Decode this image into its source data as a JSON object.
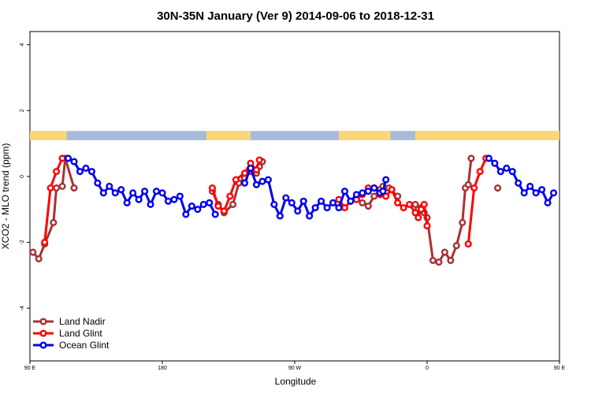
{
  "chart_data": {
    "type": "line",
    "title": "30N-35N January (Ver 9)   2014-09-06 to 2018-12-31",
    "xlabel": "Longitude",
    "ylabel": "XCO2 - MLO trend (ppm)",
    "xlim": [
      0,
      360
    ],
    "ylim": [
      -5.6,
      4.4
    ],
    "x_unit_note": "degrees east of 90 E",
    "x_ticks": [
      {
        "x": 0,
        "label": "90 E"
      },
      {
        "x": 90,
        "label": "180"
      },
      {
        "x": 180,
        "label": "90 W"
      },
      {
        "x": 270,
        "label": "0"
      },
      {
        "x": 360,
        "label": "90 E"
      },
      {
        "x": 450,
        "label": "180"
      }
    ],
    "y_ticks": [
      {
        "y": -4,
        "label": "-4"
      },
      {
        "y": -2,
        "label": "-2"
      },
      {
        "y": 0,
        "label": "0"
      },
      {
        "y": 2,
        "label": "2"
      },
      {
        "y": 4,
        "label": "4"
      }
    ],
    "land_band": {
      "y_range": [
        1.1,
        1.38
      ],
      "ocean_color": "#a6bbd8",
      "land_color": "#fbd77a",
      "land_segments": [
        [
          0,
          25
        ],
        [
          120,
          150
        ],
        [
          210,
          245
        ],
        [
          262,
          360
        ]
      ]
    },
    "legend": {
      "placement": "bottom-left",
      "entries": [
        {
          "label": "Land Nadir",
          "color": "#a83232"
        },
        {
          "label": "Land Glint",
          "color": "#ff0000"
        },
        {
          "label": "Ocean Glint",
          "color": "#0000ee"
        }
      ]
    },
    "series": [
      {
        "name": "Land Nadir",
        "color": "#a83232",
        "points": [
          [
            2,
            -2.3
          ],
          [
            6,
            -2.5
          ],
          [
            10,
            -2.05
          ],
          [
            16,
            -1.4
          ],
          [
            18,
            -0.35
          ],
          [
            22,
            -0.3
          ],
          [
            24,
            0.55
          ],
          [
            30,
            -0.35
          ],
          [
            124,
            -0.45
          ],
          [
            128,
            -0.85
          ],
          [
            132,
            -1.1
          ],
          [
            138,
            -0.85
          ],
          [
            142,
            -0.2
          ],
          [
            146,
            -0.05
          ],
          [
            150,
            0.15
          ],
          [
            154,
            0.1
          ],
          [
            156,
            0.3
          ],
          [
            158,
            0.45
          ],
          [
            226,
            -0.8
          ],
          [
            230,
            -0.9
          ],
          [
            234,
            -0.6
          ],
          [
            238,
            -0.4
          ],
          [
            240,
            -0.3
          ],
          [
            244,
            -0.35
          ],
          [
            250,
            -0.6
          ],
          [
            262,
            -0.85
          ],
          [
            264,
            -1.0
          ],
          [
            266,
            -0.95
          ],
          [
            268,
            -1.1
          ],
          [
            270,
            -1.25
          ],
          [
            274,
            -2.55
          ],
          [
            278,
            -2.6
          ],
          [
            282,
            -2.3
          ],
          [
            286,
            -2.55
          ],
          [
            290,
            -2.1
          ],
          [
            294,
            -1.4
          ],
          [
            296,
            -0.35
          ],
          [
            298,
            -0.25
          ],
          [
            300,
            0.55
          ],
          [
            318,
            -0.35
          ]
        ]
      },
      {
        "name": "Land Glint",
        "color": "#ff0000",
        "points": [
          [
            10,
            -2.0
          ],
          [
            14,
            -0.35
          ],
          [
            18,
            0.15
          ],
          [
            22,
            0.55
          ],
          [
            124,
            -0.35
          ],
          [
            128,
            -0.9
          ],
          [
            132,
            -1.05
          ],
          [
            136,
            -0.6
          ],
          [
            140,
            -0.1
          ],
          [
            146,
            0.1
          ],
          [
            150,
            0.4
          ],
          [
            154,
            0.2
          ],
          [
            156,
            0.5
          ],
          [
            210,
            -0.7
          ],
          [
            214,
            -0.95
          ],
          [
            218,
            -0.75
          ],
          [
            222,
            -0.7
          ],
          [
            226,
            -0.55
          ],
          [
            230,
            -0.35
          ],
          [
            234,
            -0.35
          ],
          [
            238,
            -0.55
          ],
          [
            242,
            -0.6
          ],
          [
            246,
            -0.4
          ],
          [
            250,
            -0.8
          ],
          [
            254,
            -0.95
          ],
          [
            258,
            -0.85
          ],
          [
            262,
            -1.1
          ],
          [
            264,
            -1.25
          ],
          [
            266,
            -1.0
          ],
          [
            268,
            -0.85
          ],
          [
            270,
            -1.5
          ],
          [
            298,
            -2.05
          ],
          [
            302,
            -0.35
          ],
          [
            306,
            0.15
          ],
          [
            310,
            0.55
          ]
        ]
      },
      {
        "name": "Ocean Glint",
        "color": "#0000ee",
        "points": [
          [
            26,
            0.55
          ],
          [
            30,
            0.45
          ],
          [
            34,
            0.15
          ],
          [
            38,
            0.25
          ],
          [
            42,
            0.15
          ],
          [
            46,
            -0.2
          ],
          [
            50,
            -0.5
          ],
          [
            54,
            -0.3
          ],
          [
            58,
            -0.5
          ],
          [
            62,
            -0.4
          ],
          [
            66,
            -0.8
          ],
          [
            70,
            -0.5
          ],
          [
            74,
            -0.7
          ],
          [
            78,
            -0.45
          ],
          [
            82,
            -0.85
          ],
          [
            86,
            -0.45
          ],
          [
            90,
            -0.5
          ],
          [
            94,
            -0.75
          ],
          [
            98,
            -0.7
          ],
          [
            102,
            -0.6
          ],
          [
            106,
            -1.15
          ],
          [
            110,
            -0.9
          ],
          [
            114,
            -1.0
          ],
          [
            118,
            -0.85
          ],
          [
            122,
            -0.8
          ],
          [
            126,
            -1.15
          ],
          [
            146,
            -0.2
          ],
          [
            150,
            0.25
          ],
          [
            154,
            -0.25
          ],
          [
            158,
            -0.15
          ],
          [
            162,
            -0.1
          ],
          [
            166,
            -0.85
          ],
          [
            170,
            -1.2
          ],
          [
            174,
            -0.65
          ],
          [
            178,
            -0.8
          ],
          [
            182,
            -1.05
          ],
          [
            186,
            -0.75
          ],
          [
            190,
            -1.2
          ],
          [
            194,
            -0.95
          ],
          [
            198,
            -0.75
          ],
          [
            202,
            -0.95
          ],
          [
            206,
            -0.8
          ],
          [
            210,
            -0.95
          ],
          [
            214,
            -0.45
          ],
          [
            218,
            -0.75
          ],
          [
            222,
            -0.55
          ],
          [
            226,
            -0.5
          ],
          [
            230,
            -0.45
          ],
          [
            234,
            -0.35
          ],
          [
            238,
            -0.5
          ],
          [
            240,
            -0.45
          ],
          [
            242,
            -0.1
          ],
          [
            312,
            0.55
          ],
          [
            316,
            0.4
          ],
          [
            320,
            0.15
          ],
          [
            324,
            0.25
          ],
          [
            328,
            0.15
          ],
          [
            332,
            -0.2
          ],
          [
            336,
            -0.5
          ],
          [
            340,
            -0.3
          ],
          [
            344,
            -0.5
          ],
          [
            348,
            -0.4
          ],
          [
            352,
            -0.8
          ],
          [
            356,
            -0.5
          ]
        ]
      }
    ]
  }
}
